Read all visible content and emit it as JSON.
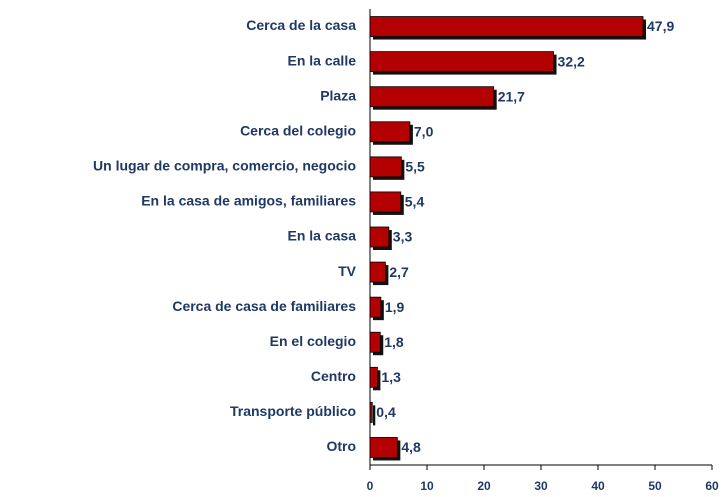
{
  "chart_data": {
    "type": "bar",
    "orientation": "horizontal",
    "categories": [
      "Cerca de la casa",
      "En la calle",
      "Plaza",
      "Cerca del colegio",
      "Un lugar de compra, comercio, negocio",
      "En la casa de amigos, familiares",
      "En la casa",
      "TV",
      "Cerca de casa de familiares",
      "En el colegio",
      "Centro",
      "Transporte público",
      "Otro"
    ],
    "values": [
      47.9,
      32.2,
      21.7,
      7.0,
      5.5,
      5.4,
      3.3,
      2.7,
      1.9,
      1.8,
      1.3,
      0.4,
      4.8
    ],
    "value_labels": [
      "47,9",
      "32,2",
      "21,7",
      "7,0",
      "5,5",
      "5,4",
      "3,3",
      "2,7",
      "1,9",
      "1,8",
      "1,3",
      "0,4",
      "4,8"
    ],
    "color": "#b30000",
    "xlim": [
      0,
      60
    ],
    "xticks": [
      0,
      10,
      20,
      30,
      40,
      50,
      60
    ],
    "grid": false
  }
}
